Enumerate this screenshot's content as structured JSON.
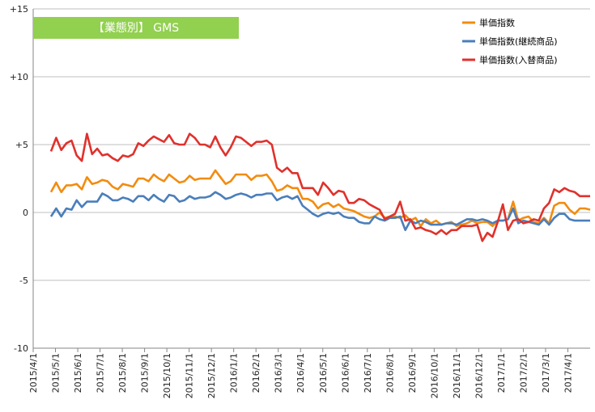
{
  "chart_data": {
    "type": "line",
    "title": "【業態別】 GMS",
    "title_bg_color": "#92d050",
    "ylim": [
      -10,
      15
    ],
    "y_ticks": [
      {
        "value": 15,
        "label": "+15"
      },
      {
        "value": 10,
        "label": "+10"
      },
      {
        "value": 5,
        "label": "+5"
      },
      {
        "value": 0,
        "label": "0"
      },
      {
        "value": -5,
        "label": "-5"
      },
      {
        "value": -10,
        "label": "-10"
      }
    ],
    "x_tick_labels": [
      "2015/4/1",
      "2015/5/1",
      "2015/6/1",
      "2015/7/1",
      "2015/8/1",
      "2015/9/1",
      "2015/10/1",
      "2015/11/1",
      "2015/12/1",
      "2016/1/1",
      "2016/2/1",
      "2016/3/1",
      "2016/4/1",
      "2016/5/1",
      "2016/6/1",
      "2016/7/1",
      "2016/8/1",
      "2016/9/1",
      "2016/10/1",
      "2016/11/1",
      "2016/12/1",
      "2017/1/1",
      "2017/2/1",
      "2017/3/1",
      "2017/4/1"
    ],
    "x_range_months": [
      0,
      25
    ],
    "grid": "horizontal",
    "legend_position": "top-right",
    "series": [
      {
        "name": "単価指数",
        "color": "#f28c0f",
        "values": [
          1.5,
          2.2,
          1.5,
          2.0,
          2.0,
          2.1,
          1.7,
          2.6,
          2.1,
          2.2,
          2.4,
          2.3,
          1.9,
          1.7,
          2.1,
          2.0,
          1.9,
          2.5,
          2.5,
          2.3,
          2.8,
          2.5,
          2.3,
          2.8,
          2.5,
          2.2,
          2.3,
          2.7,
          2.4,
          2.5,
          2.5,
          2.5,
          3.1,
          2.6,
          2.1,
          2.3,
          2.8,
          2.8,
          2.8,
          2.4,
          2.7,
          2.7,
          2.8,
          2.3,
          1.6,
          1.7,
          2.0,
          1.8,
          1.8,
          1.0,
          1.0,
          0.8,
          0.3,
          0.6,
          0.7,
          0.4,
          0.6,
          0.3,
          0.2,
          0.1,
          -0.1,
          -0.3,
          -0.4,
          -0.3,
          0.0,
          -0.4,
          -0.3,
          -0.3,
          -0.4,
          -0.2,
          -0.6,
          -0.4,
          -1.0,
          -0.5,
          -0.8,
          -0.6,
          -0.9,
          -0.8,
          -0.7,
          -1.0,
          -0.9,
          -0.8,
          -0.6,
          -0.8,
          -0.7,
          -0.7,
          -1.0,
          -0.6,
          -0.6,
          -0.5,
          0.8,
          -0.6,
          -0.4,
          -0.3,
          -0.7,
          -0.8,
          -0.4,
          -0.8,
          0.5,
          0.7,
          0.7,
          0.2,
          -0.1,
          0.3,
          0.3,
          0.2
        ]
      },
      {
        "name": "単価指数(継続商品)",
        "color": "#4a7ebb",
        "values": [
          -0.3,
          0.3,
          -0.3,
          0.3,
          0.2,
          0.9,
          0.4,
          0.8,
          0.8,
          0.8,
          1.4,
          1.2,
          0.9,
          0.9,
          1.1,
          1.0,
          0.8,
          1.2,
          1.2,
          0.9,
          1.3,
          1.0,
          0.8,
          1.3,
          1.2,
          0.8,
          0.9,
          1.2,
          1.0,
          1.1,
          1.1,
          1.2,
          1.5,
          1.3,
          1.0,
          1.1,
          1.3,
          1.4,
          1.3,
          1.1,
          1.3,
          1.3,
          1.4,
          1.4,
          0.9,
          1.1,
          1.2,
          1.0,
          1.2,
          0.5,
          0.2,
          -0.1,
          -0.3,
          -0.1,
          0.0,
          -0.1,
          0.0,
          -0.3,
          -0.4,
          -0.4,
          -0.7,
          -0.8,
          -0.8,
          -0.3,
          -0.5,
          -0.6,
          -0.4,
          -0.4,
          -0.3,
          -1.3,
          -0.6,
          -0.8,
          -0.6,
          -0.7,
          -0.9,
          -0.9,
          -0.9,
          -0.8,
          -0.8,
          -0.9,
          -0.7,
          -0.5,
          -0.5,
          -0.6,
          -0.5,
          -0.6,
          -0.8,
          -0.6,
          -0.6,
          -0.5,
          0.3,
          -0.8,
          -0.6,
          -0.7,
          -0.8,
          -0.9,
          -0.5,
          -0.9,
          -0.4,
          -0.1,
          -0.1,
          -0.5,
          -0.6,
          -0.6,
          -0.6,
          -0.6
        ]
      },
      {
        "name": "単価指数(入替商品)",
        "color": "#e0312c",
        "values": [
          4.5,
          5.5,
          4.6,
          5.1,
          5.3,
          4.2,
          3.8,
          5.8,
          4.3,
          4.7,
          4.2,
          4.3,
          4.0,
          3.8,
          4.2,
          4.1,
          4.3,
          5.1,
          4.9,
          5.3,
          5.6,
          5.4,
          5.2,
          5.7,
          5.1,
          5.0,
          5.0,
          5.8,
          5.5,
          5.0,
          5.0,
          4.8,
          5.6,
          4.8,
          4.2,
          4.8,
          5.6,
          5.5,
          5.2,
          4.9,
          5.2,
          5.2,
          5.3,
          5.0,
          3.3,
          3.0,
          3.3,
          2.9,
          2.9,
          1.8,
          1.8,
          1.8,
          1.3,
          2.2,
          1.8,
          1.3,
          1.6,
          1.5,
          0.7,
          0.7,
          1.0,
          0.9,
          0.6,
          0.4,
          0.2,
          -0.5,
          -0.3,
          -0.1,
          0.8,
          -0.6,
          -0.5,
          -1.2,
          -1.1,
          -1.3,
          -1.4,
          -1.6,
          -1.3,
          -1.6,
          -1.3,
          -1.3,
          -1.0,
          -1.0,
          -1.0,
          -0.9,
          -2.1,
          -1.5,
          -1.8,
          -0.7,
          0.6,
          -1.3,
          -0.6,
          -0.5,
          -0.8,
          -0.7,
          -0.5,
          -0.6,
          0.3,
          0.7,
          1.7,
          1.5,
          1.8,
          1.6,
          1.5,
          1.2,
          1.2,
          1.2
        ]
      }
    ]
  }
}
